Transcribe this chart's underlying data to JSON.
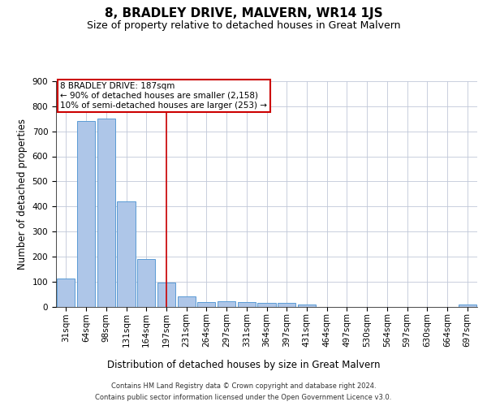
{
  "title": "8, BRADLEY DRIVE, MALVERN, WR14 1JS",
  "subtitle": "Size of property relative to detached houses in Great Malvern",
  "xlabel": "Distribution of detached houses by size in Great Malvern",
  "ylabel": "Number of detached properties",
  "footer_line1": "Contains HM Land Registry data © Crown copyright and database right 2024.",
  "footer_line2": "Contains public sector information licensed under the Open Government Licence v3.0.",
  "categories": [
    "31sqm",
    "64sqm",
    "98sqm",
    "131sqm",
    "164sqm",
    "197sqm",
    "231sqm",
    "264sqm",
    "297sqm",
    "331sqm",
    "364sqm",
    "397sqm",
    "431sqm",
    "464sqm",
    "497sqm",
    "530sqm",
    "564sqm",
    "597sqm",
    "630sqm",
    "664sqm",
    "697sqm"
  ],
  "values": [
    112,
    740,
    750,
    420,
    190,
    95,
    42,
    18,
    22,
    18,
    15,
    13,
    8,
    0,
    0,
    0,
    0,
    0,
    0,
    0,
    7
  ],
  "bar_color": "#aec6e8",
  "bar_edge_color": "#5b9bd5",
  "highlight_index": 5,
  "highlight_color_line": "#cc0000",
  "annotation_text": "8 BRADLEY DRIVE: 187sqm\n← 90% of detached houses are smaller (2,158)\n10% of semi-detached houses are larger (253) →",
  "annotation_box_edge_color": "#cc0000",
  "ylim": [
    0,
    900
  ],
  "yticks": [
    0,
    100,
    200,
    300,
    400,
    500,
    600,
    700,
    800,
    900
  ],
  "background_color": "#ffffff",
  "grid_color": "#c0c8d8",
  "title_fontsize": 11,
  "subtitle_fontsize": 9,
  "axis_label_fontsize": 8.5,
  "tick_fontsize": 7.5,
  "annotation_fontsize": 7.5,
  "footer_fontsize": 6.0
}
